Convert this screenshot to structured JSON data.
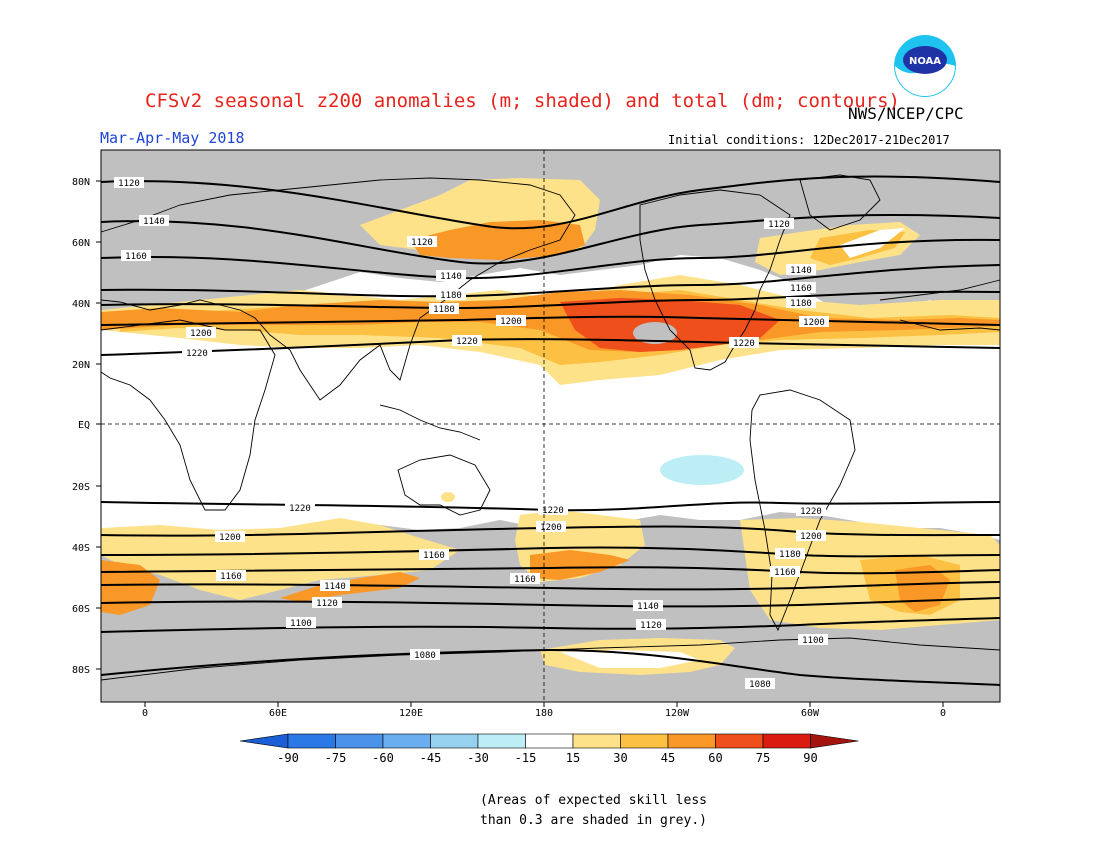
{
  "header": {
    "title": "CFSv2 seasonal z200 anomalies (m; shaded) and total (dm; contours)",
    "agency": "NWS/NCEP/CPC",
    "season": "Mar-Apr-May 2018",
    "initial_conditions": "Initial conditions: 12Dec2017-21Dec2017",
    "logo_text": "NOAA"
  },
  "map": {
    "lat_labels": [
      "80N",
      "60N",
      "40N",
      "20N",
      "EQ",
      "20S",
      "40S",
      "60S",
      "80S"
    ],
    "lon_labels": [
      "0",
      "60E",
      "120E",
      "180",
      "120W",
      "60W",
      "0"
    ],
    "contour_labels": [
      "1120",
      "1140",
      "1160",
      "1180",
      "1200",
      "1220",
      "1120",
      "1140",
      "1180",
      "1200",
      "1220",
      "1120",
      "1140",
      "1160",
      "1180",
      "1200",
      "1220",
      "1220",
      "1220",
      "1200",
      "1200",
      "1200",
      "1160",
      "1160",
      "1160",
      "1180",
      "1160",
      "1140",
      "1120",
      "1100",
      "1140",
      "1120",
      "1100",
      "1080",
      "1080"
    ]
  },
  "colorbar": {
    "labels": [
      "-90",
      "-75",
      "-60",
      "-45",
      "-30",
      "-15",
      "15",
      "30",
      "45",
      "60",
      "75",
      "90"
    ],
    "colors": [
      "#1a5fd6",
      "#2b79e6",
      "#4a92ea",
      "#6aaeef",
      "#96d2f0",
      "#bdeef5",
      "#ffffff",
      "#fee28a",
      "#fcc043",
      "#f99727",
      "#ef4f1b",
      "#d91b12",
      "#a4140f"
    ]
  },
  "note": {
    "line1": "(Areas of expected skill less",
    "line2": "than 0.3 are shaded in grey.)"
  },
  "colors": {
    "grey_low_skill": "#c0c0c0",
    "ocean_bg": "#ffffff"
  }
}
